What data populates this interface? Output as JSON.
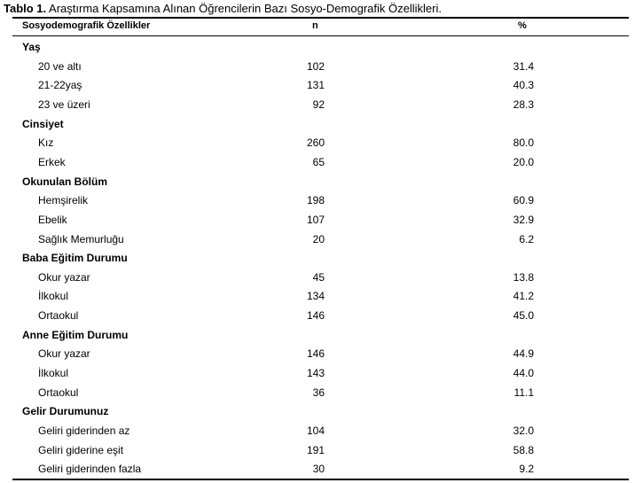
{
  "caption": {
    "label": "Tablo 1.",
    "text": " Araştırma Kapsamına Alınan Öğrencilerin Bazı Sosyo-Demografik Özellikleri."
  },
  "header": {
    "col1": "Sosyodemografik Özellikler",
    "col2": "n",
    "col3": "%"
  },
  "groups": [
    {
      "title": "Yaş",
      "rows": [
        {
          "label": "20 ve altı",
          "n": "102",
          "pct": "31.4"
        },
        {
          "label": "21-22yaş",
          "n": "131",
          "pct": "40.3"
        },
        {
          "label": "23 ve üzeri",
          "n": "92",
          "pct": "28.3"
        }
      ]
    },
    {
      "title": "Cinsiyet",
      "rows": [
        {
          "label": "Kız",
          "n": "260",
          "pct": "80.0"
        },
        {
          "label": "Erkek",
          "n": "65",
          "pct": "20.0"
        }
      ]
    },
    {
      "title": "Okunulan Bölüm",
      "rows": [
        {
          "label": "Hemşirelik",
          "n": "198",
          "pct": "60.9"
        },
        {
          "label": "Ebelik",
          "n": "107",
          "pct": "32.9"
        },
        {
          "label": "Sağlık Memurluğu",
          "n": "20",
          "pct": "6.2"
        }
      ]
    },
    {
      "title": "Baba Eğitim Durumu",
      "rows": [
        {
          "label": "Okur yazar",
          "n": "45",
          "pct": "13.8"
        },
        {
          "label": "İlkokul",
          "n": "134",
          "pct": "41.2"
        },
        {
          "label": "Ortaokul",
          "n": "146",
          "pct": "45.0"
        }
      ]
    },
    {
      "title": "Anne Eğitim Durumu",
      "rows": [
        {
          "label": "Okur yazar",
          "n": "146",
          "pct": "44.9"
        },
        {
          "label": "İlkokul",
          "n": "143",
          "pct": "44.0"
        },
        {
          "label": "Ortaokul",
          "n": "36",
          "pct": "11.1"
        }
      ]
    },
    {
      "title": "Gelir Durumunuz",
      "rows": [
        {
          "label": "Geliri giderinden az",
          "n": "104",
          "pct": "32.0"
        },
        {
          "label": "Geliri giderine eşit",
          "n": "191",
          "pct": "58.8"
        },
        {
          "label": "Geliri giderinden fazla",
          "n": "30",
          "pct": "9.2"
        }
      ]
    }
  ]
}
